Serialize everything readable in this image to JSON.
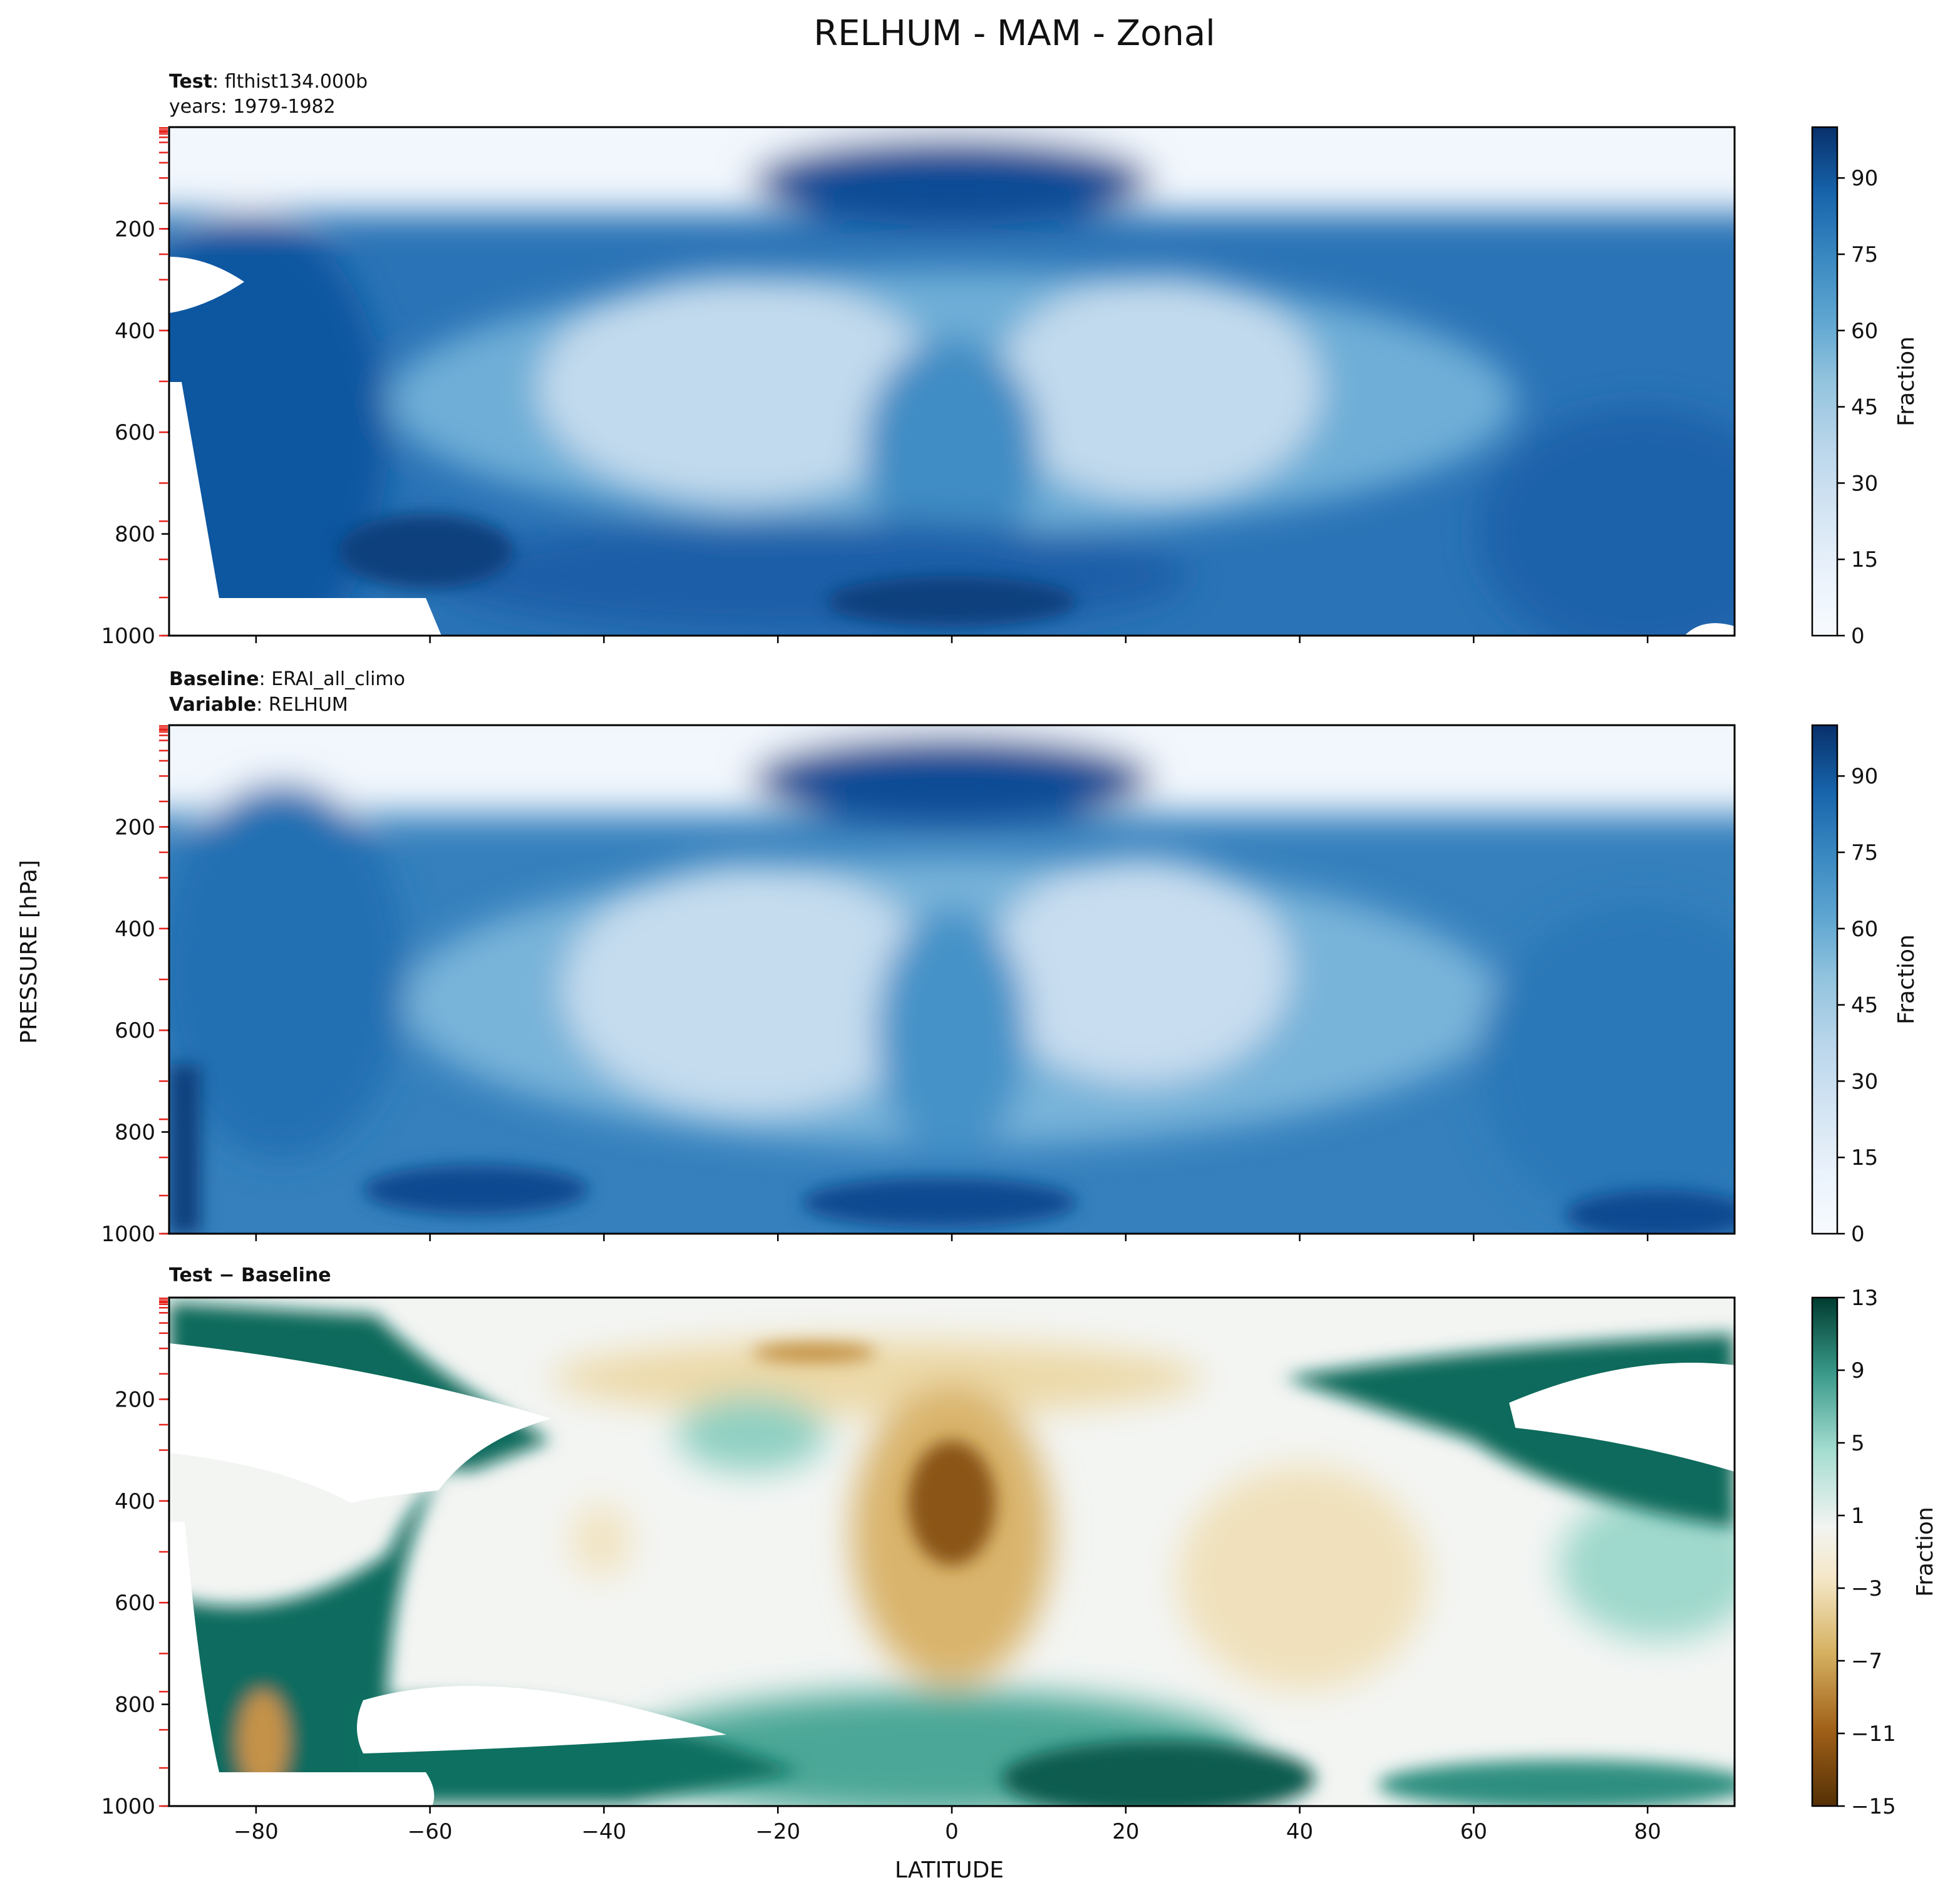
{
  "figure": {
    "title": "RELHUM - MAM - Zonal",
    "ylabel": "PRESSURE [hPa]",
    "xlabel": "LATITUDE"
  },
  "chart_data": [
    {
      "type": "heatmap",
      "subtitle_lines": [
        {
          "bold": "Test",
          "sep": ": ",
          "text": "flthist134.000b"
        },
        {
          "bold": "",
          "sep": "",
          "text": "years: 1979-1982"
        }
      ],
      "x_ticks": [
        "−80",
        "−60",
        "−40",
        "−20",
        "0",
        "20",
        "40",
        "60",
        "80"
      ],
      "x_tick_values": [
        -80,
        -60,
        -40,
        -20,
        0,
        20,
        40,
        60,
        80
      ],
      "xlim": [
        -90,
        90
      ],
      "y_ticks": [
        "200",
        "400",
        "600",
        "800",
        "1000"
      ],
      "y_tick_values": [
        200,
        400,
        600,
        800,
        1000
      ],
      "ylim": [
        1000,
        0
      ],
      "colorbar": {
        "label": "Fraction",
        "ticks": [
          "0",
          "15",
          "30",
          "45",
          "60",
          "75",
          "90"
        ],
        "tick_values": [
          0,
          15,
          30,
          45,
          60,
          75,
          90
        ],
        "range": [
          0,
          100
        ],
        "colormap": "Blues"
      }
    },
    {
      "type": "heatmap",
      "subtitle_lines": [
        {
          "bold": "Baseline",
          "sep": ": ",
          "text": "ERAI_all_climo"
        },
        {
          "bold": "Variable",
          "sep": ": ",
          "text": "RELHUM"
        }
      ],
      "x_ticks": [
        "−80",
        "−60",
        "−40",
        "−20",
        "0",
        "20",
        "40",
        "60",
        "80"
      ],
      "x_tick_values": [
        -80,
        -60,
        -40,
        -20,
        0,
        20,
        40,
        60,
        80
      ],
      "xlim": [
        -90,
        90
      ],
      "y_ticks": [
        "200",
        "400",
        "600",
        "800",
        "1000"
      ],
      "y_tick_values": [
        200,
        400,
        600,
        800,
        1000
      ],
      "ylim": [
        1000,
        0
      ],
      "colorbar": {
        "label": "Fraction",
        "ticks": [
          "0",
          "15",
          "30",
          "45",
          "60",
          "75",
          "90"
        ],
        "tick_values": [
          0,
          15,
          30,
          45,
          60,
          75,
          90
        ],
        "range": [
          0,
          100
        ],
        "colormap": "Blues"
      }
    },
    {
      "type": "heatmap",
      "subtitle_lines": [
        {
          "bold": "Test − Baseline",
          "sep": "",
          "text": ""
        }
      ],
      "x_ticks": [
        "−80",
        "−60",
        "−40",
        "−20",
        "0",
        "20",
        "40",
        "60",
        "80"
      ],
      "x_tick_values": [
        -80,
        -60,
        -40,
        -20,
        0,
        20,
        40,
        60,
        80
      ],
      "xlim": [
        -90,
        90
      ],
      "y_ticks": [
        "200",
        "400",
        "600",
        "800",
        "1000"
      ],
      "y_tick_values": [
        200,
        400,
        600,
        800,
        1000
      ],
      "ylim": [
        1000,
        0
      ],
      "colorbar": {
        "label": "Fraction",
        "ticks": [
          "13",
          "9",
          "5",
          "1",
          "−3",
          "−7",
          "−11",
          "−15"
        ],
        "tick_values": [
          13,
          9,
          5,
          1,
          -3,
          -7,
          -11,
          -15
        ],
        "range": [
          -15,
          13
        ],
        "colormap": "BrBG"
      }
    }
  ]
}
